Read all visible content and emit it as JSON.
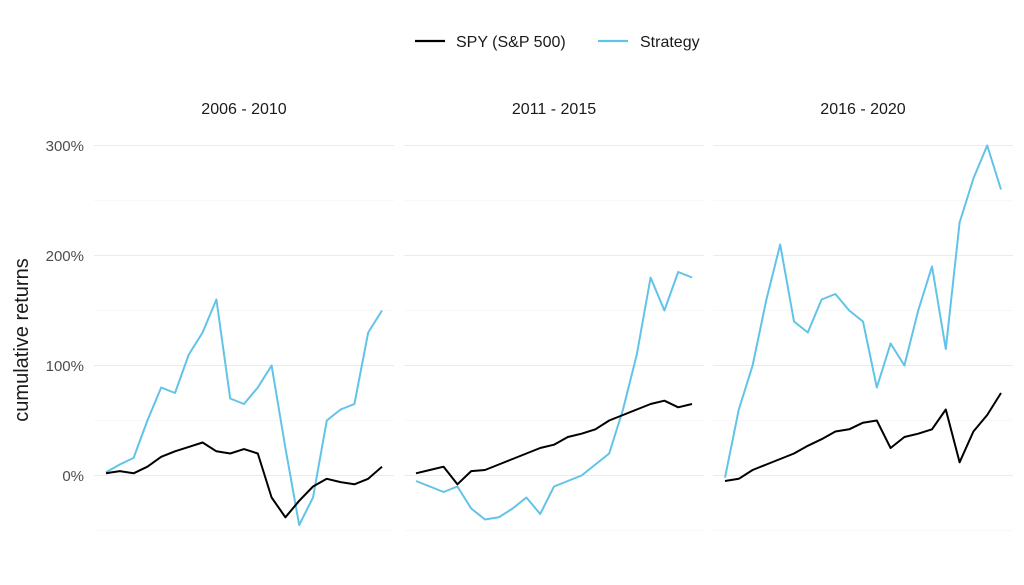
{
  "chart_data": {
    "type": "line",
    "ylabel": "cumulative returns",
    "y_unit": "%",
    "ylim": [
      -55,
      310
    ],
    "y_ticks": [
      0,
      100,
      200,
      300
    ],
    "y_tick_labels": [
      "0%",
      "100%",
      "200%",
      "300%"
    ],
    "legend": {
      "position": "top",
      "entries": [
        {
          "name": "SPY (S&P 500)",
          "color": "#000000"
        },
        {
          "name": "Strategy",
          "color": "#62C3E8"
        }
      ]
    },
    "grid": true,
    "panels": [
      {
        "title": "2006 - 2010",
        "x": [
          2006.0,
          2006.25,
          2006.5,
          2006.75,
          2007.0,
          2007.25,
          2007.5,
          2007.75,
          2008.0,
          2008.25,
          2008.5,
          2008.75,
          2009.0,
          2009.25,
          2009.5,
          2009.75,
          2010.0,
          2010.25,
          2010.5,
          2010.75,
          2011.0
        ],
        "series": [
          {
            "name": "SPY (S&P 500)",
            "values": [
              2,
              4,
              2,
              8,
              17,
              22,
              26,
              30,
              22,
              20,
              24,
              20,
              -20,
              -38,
              -23,
              -10,
              -3,
              -6,
              -8,
              -3,
              8
            ]
          },
          {
            "name": "Strategy",
            "values": [
              3,
              10,
              16,
              50,
              80,
              75,
              110,
              130,
              160,
              70,
              65,
              80,
              100,
              25,
              -45,
              -20,
              50,
              60,
              65,
              130,
              150
            ]
          }
        ]
      },
      {
        "title": "2011 - 2015",
        "x": [
          2011.0,
          2011.25,
          2011.5,
          2011.75,
          2012.0,
          2012.25,
          2012.5,
          2012.75,
          2013.0,
          2013.25,
          2013.5,
          2013.75,
          2014.0,
          2014.25,
          2014.5,
          2014.75,
          2015.0,
          2015.25,
          2015.5,
          2015.75,
          2016.0
        ],
        "series": [
          {
            "name": "SPY (S&P 500)",
            "values": [
              2,
              5,
              8,
              -8,
              4,
              5,
              10,
              15,
              20,
              25,
              28,
              35,
              38,
              42,
              50,
              55,
              60,
              65,
              68,
              62,
              65
            ]
          },
          {
            "name": "Strategy",
            "values": [
              -5,
              -10,
              -15,
              -10,
              -30,
              -40,
              -38,
              -30,
              -20,
              -35,
              -10,
              -5,
              0,
              10,
              20,
              60,
              110,
              180,
              150,
              185,
              180
            ]
          }
        ]
      },
      {
        "title": "2016 - 2020",
        "x": [
          2016.0,
          2016.25,
          2016.5,
          2016.75,
          2017.0,
          2017.25,
          2017.5,
          2017.75,
          2018.0,
          2018.25,
          2018.5,
          2018.75,
          2019.0,
          2019.25,
          2019.5,
          2019.75,
          2020.0,
          2020.25,
          2020.5,
          2020.75,
          2021.0
        ],
        "series": [
          {
            "name": "SPY (S&P 500)",
            "values": [
              -5,
              -3,
              5,
              10,
              15,
              20,
              27,
              33,
              40,
              42,
              48,
              50,
              25,
              35,
              38,
              42,
              60,
              12,
              40,
              55,
              75
            ]
          },
          {
            "name": "Strategy",
            "values": [
              -2,
              60,
              100,
              160,
              210,
              140,
              130,
              160,
              165,
              150,
              140,
              80,
              120,
              100,
              150,
              190,
              115,
              230,
              270,
              300,
              260
            ]
          }
        ]
      }
    ]
  }
}
